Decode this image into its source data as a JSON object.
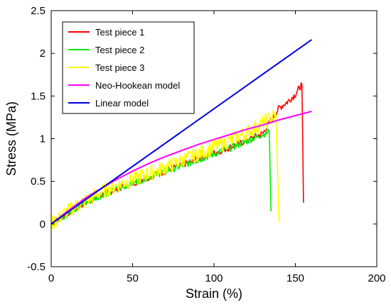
{
  "chart_data": {
    "type": "line",
    "xlabel": "Strain (%)",
    "ylabel": "Stress (MPa)",
    "xlim": [
      0,
      200
    ],
    "ylim": [
      -0.5,
      2.5
    ],
    "xticks": [
      0,
      50,
      100,
      150,
      200
    ],
    "xtick_labels": [
      "0",
      "50",
      "100",
      "150",
      "200"
    ],
    "yticks": [
      -0.5,
      0,
      0.5,
      1,
      1.5,
      2,
      2.5
    ],
    "ytick_labels": [
      "-0.5",
      "0",
      "0.5",
      "1",
      "1.5",
      "2",
      "2.5"
    ],
    "grid": false,
    "legend_position": "top-left",
    "series": [
      {
        "name": "Test piece 1",
        "color": "#ff0000",
        "noise": 0.04,
        "x": [
          0,
          10,
          20,
          30,
          40,
          50,
          60,
          70,
          80,
          90,
          100,
          110,
          120,
          130,
          140,
          145,
          150,
          154,
          154.5,
          155
        ],
        "y": [
          0,
          0.12,
          0.24,
          0.33,
          0.41,
          0.48,
          0.55,
          0.62,
          0.69,
          0.76,
          0.83,
          0.9,
          0.98,
          1.06,
          1.36,
          1.43,
          1.52,
          1.64,
          1.0,
          0.25
        ]
      },
      {
        "name": "Test piece 2",
        "color": "#00ee00",
        "noise": 0.04,
        "x": [
          0,
          10,
          20,
          30,
          40,
          50,
          60,
          70,
          80,
          90,
          100,
          110,
          120,
          130,
          134,
          134.5,
          135
        ],
        "y": [
          0,
          0.12,
          0.24,
          0.33,
          0.41,
          0.48,
          0.55,
          0.62,
          0.68,
          0.75,
          0.82,
          0.89,
          0.97,
          1.05,
          1.08,
          0.6,
          0.15
        ]
      },
      {
        "name": "Test piece 3",
        "color": "#ffff00",
        "noise": 0.09,
        "x": [
          0,
          10,
          20,
          30,
          40,
          50,
          60,
          70,
          80,
          90,
          100,
          110,
          120,
          130,
          138,
          139,
          140
        ],
        "y": [
          0,
          0.15,
          0.26,
          0.37,
          0.45,
          0.52,
          0.59,
          0.66,
          0.74,
          0.82,
          0.9,
          0.98,
          1.07,
          1.18,
          1.28,
          0.7,
          0.02
        ]
      },
      {
        "name": "Neo-Hookean model",
        "color": "#ff00ff",
        "noise": 0,
        "x": [
          0,
          10,
          20,
          30,
          40,
          50,
          60,
          70,
          80,
          90,
          100,
          110,
          120,
          130,
          140,
          150,
          160
        ],
        "y": [
          0,
          0.15,
          0.29,
          0.41,
          0.52,
          0.62,
          0.71,
          0.79,
          0.86,
          0.93,
          0.99,
          1.05,
          1.11,
          1.16,
          1.22,
          1.27,
          1.32
        ]
      },
      {
        "name": "Linear model",
        "color": "#0000dd",
        "noise": 0,
        "x": [
          0,
          160
        ],
        "y": [
          0,
          2.16
        ]
      }
    ]
  }
}
